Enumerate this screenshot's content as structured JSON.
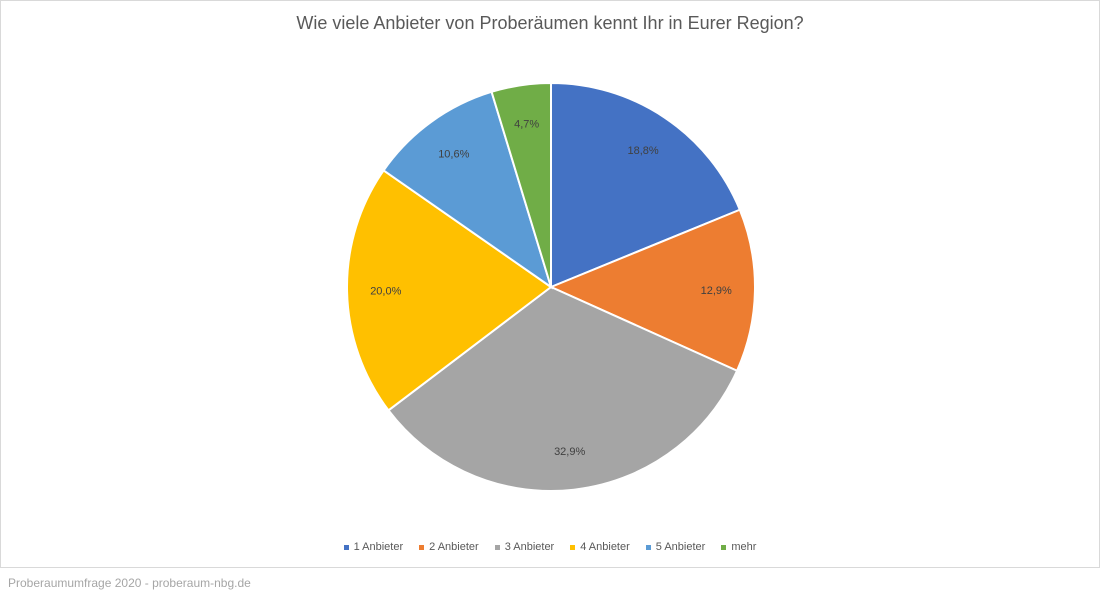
{
  "footer": "Proberaumumfrage 2020 - proberaum-nbg.de",
  "chart_data": {
    "type": "pie",
    "title": "Wie viele Anbieter von Proberäumen kennt Ihr in Eurer Region?",
    "categories": [
      "1 Anbieter",
      "2 Anbieter",
      "3 Anbieter",
      "4 Anbieter",
      "5 Anbieter",
      "mehr"
    ],
    "values": [
      18.8,
      12.9,
      32.9,
      20.0,
      10.6,
      4.7
    ],
    "labels": [
      "18,8%",
      "12,9%",
      "32,9%",
      "20,0%",
      "10,6%",
      "4,7%"
    ],
    "colors": [
      "#4472c4",
      "#ed7d31",
      "#a5a5a5",
      "#ffc000",
      "#5b9bd5",
      "#70ad47"
    ],
    "legend_position": "bottom"
  }
}
